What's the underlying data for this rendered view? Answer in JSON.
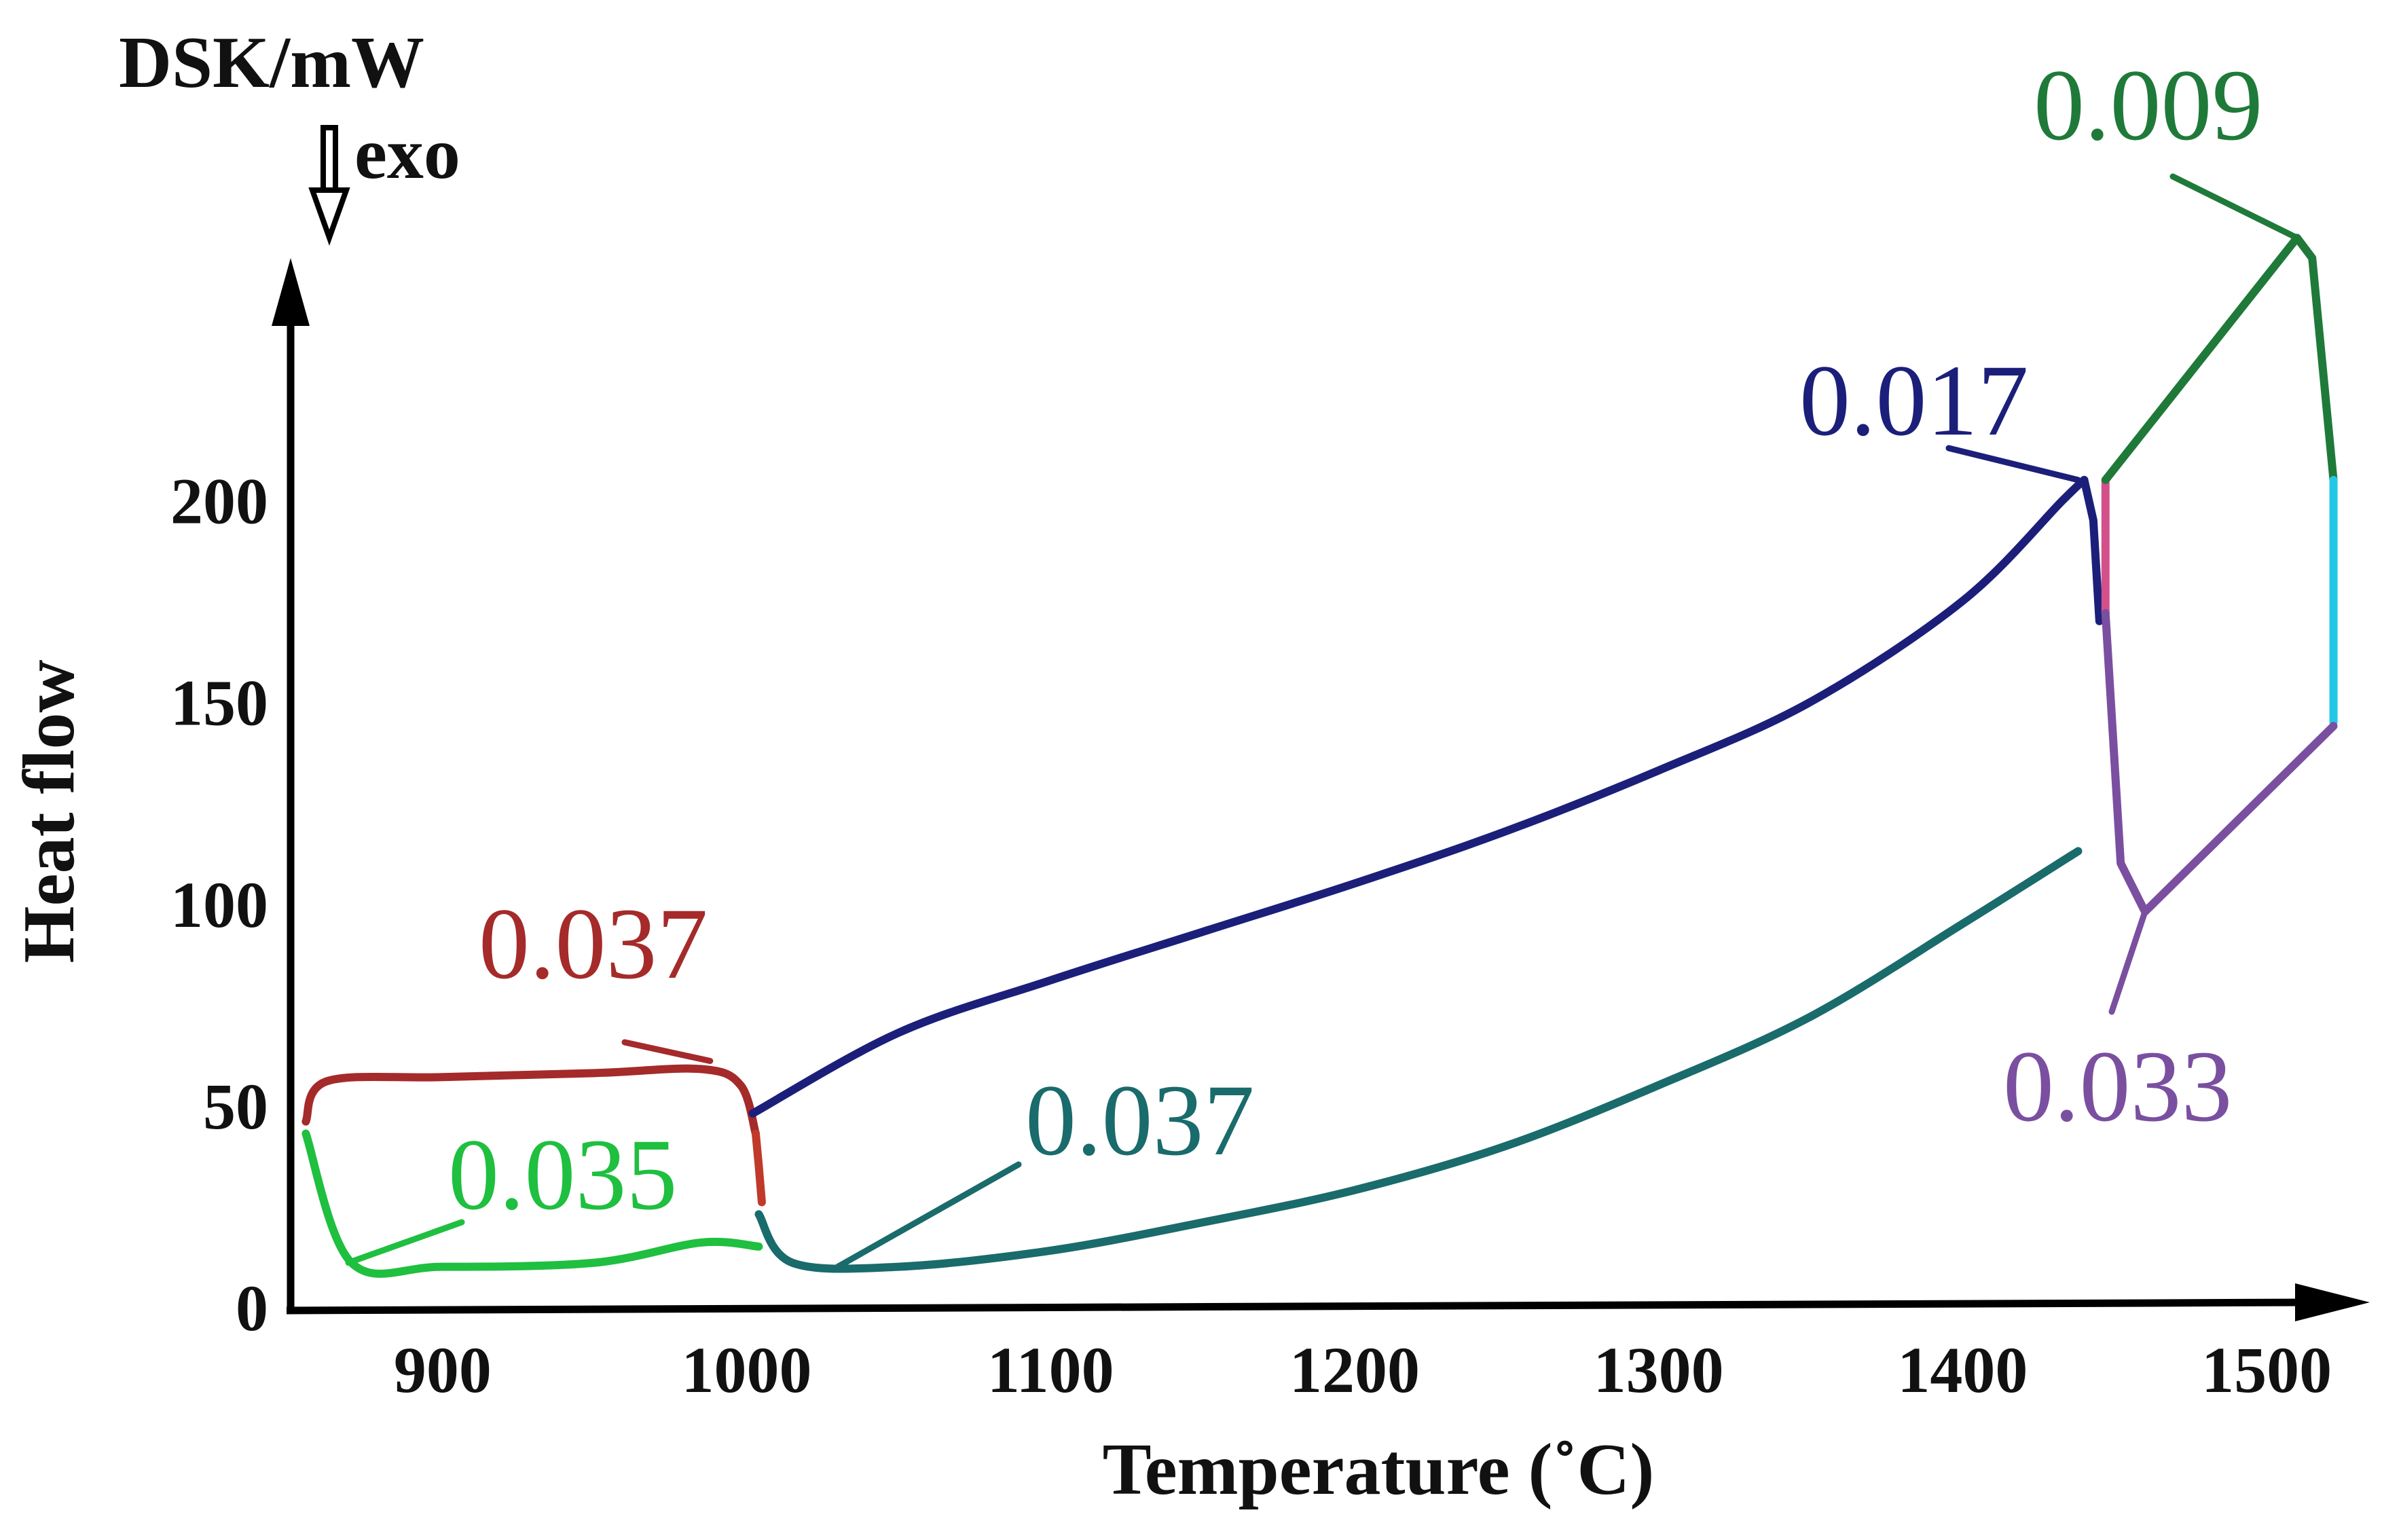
{
  "chart_data": {
    "type": "line",
    "title": "",
    "xlabel": "Temperature (˚C)",
    "ylabel": "Heat flow",
    "y_unit_label": "DSK/mW",
    "y_direction_label": "exo",
    "xlim": [
      850,
      1525
    ],
    "ylim": [
      0,
      260
    ],
    "x_ticks": [
      900,
      1000,
      1100,
      1200,
      1300,
      1400,
      1500
    ],
    "y_ticks": [
      0,
      50,
      100,
      150,
      200
    ],
    "grid": false,
    "series": [
      {
        "name": "red-top",
        "color": "#a52a2a",
        "x": [
          855,
          862,
          900,
          950,
          985,
          998,
          1003
        ],
        "y": [
          46,
          56,
          57,
          58,
          59,
          55,
          43
        ]
      },
      {
        "name": "red-drop",
        "color": "#c0392b",
        "x": [
          1003,
          1004,
          1005
        ],
        "y": [
          43,
          35,
          26
        ]
      },
      {
        "name": "green-bottom",
        "color": "#1fbf3f",
        "x": [
          855,
          870,
          900,
          950,
          985,
          1004
        ],
        "y": [
          43,
          11,
          10,
          11,
          16,
          15
        ]
      },
      {
        "name": "blue-upper",
        "color": "#1b1f7a",
        "x": [
          1002,
          1050,
          1100,
          1150,
          1200,
          1250,
          1300,
          1350,
          1400,
          1433,
          1440
        ],
        "y": [
          48,
          68,
          81,
          93,
          105,
          118,
          133,
          150,
          175,
          200,
          205
        ]
      },
      {
        "name": "blue-drop",
        "color": "#1b1f7a",
        "x": [
          1440,
          1443,
          1445
        ],
        "y": [
          205,
          195,
          170
        ]
      },
      {
        "name": "teal-lower",
        "color": "#1a6b6b",
        "x": [
          1004,
          1015,
          1050,
          1100,
          1150,
          1200,
          1250,
          1300,
          1350,
          1400,
          1438
        ],
        "y": [
          23,
          11,
          10,
          14,
          21,
          29,
          40,
          55,
          72,
          95,
          113
        ]
      },
      {
        "name": "pink-segment",
        "color": "#d4508a",
        "x": [
          1447,
          1447
        ],
        "y": [
          172,
          205
        ]
      },
      {
        "name": "green-upper",
        "color": "#1f7a3a",
        "x": [
          1447,
          1510,
          1515,
          1522
        ],
        "y": [
          205,
          265,
          260,
          205
        ]
      },
      {
        "name": "cyan-segment",
        "color": "#22c7e6",
        "x": [
          1522,
          1522
        ],
        "y": [
          205,
          145
        ]
      },
      {
        "name": "purple-lower",
        "color": "#7a4fa0",
        "x": [
          1447,
          1452,
          1460,
          1522
        ],
        "y": [
          172,
          110,
          98,
          144
        ]
      }
    ],
    "annotations": [
      {
        "text": "0.037",
        "color": "#a52a2a",
        "x": 988,
        "y": 61
      },
      {
        "text": "0.035",
        "color": "#1fbf3f",
        "x": 869,
        "y": 11
      },
      {
        "text": "0.037",
        "color": "#1a6b6b",
        "x": 1030,
        "y": 10
      },
      {
        "text": "0.017",
        "color": "#1b1f7a",
        "x": 1438,
        "y": 205
      },
      {
        "text": "0.033",
        "color": "#7a4fa0",
        "x": 1460,
        "y": 98
      },
      {
        "text": "0.009",
        "color": "#1f7a3a",
        "x": 1510,
        "y": 265
      }
    ]
  }
}
